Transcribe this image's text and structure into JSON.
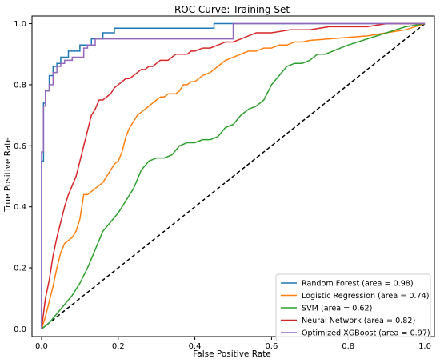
{
  "chart_data": {
    "type": "line",
    "title": "ROC Curve: Training Set",
    "xlabel": "False Positive Rate",
    "ylabel": "True Positive Rate",
    "xlim": [
      -0.025,
      1.025
    ],
    "ylim": [
      -0.025,
      1.025
    ],
    "xticks": [
      0.0,
      0.2,
      0.4,
      0.6,
      0.8,
      1.0
    ],
    "yticks": [
      0.0,
      0.2,
      0.4,
      0.6,
      0.8,
      1.0
    ],
    "xtick_labels": [
      "0.0",
      "0.2",
      "0.4",
      "0.6",
      "0.8",
      "1.0"
    ],
    "ytick_labels": [
      "0.0",
      "0.2",
      "0.4",
      "0.6",
      "0.8",
      "1.0"
    ],
    "grid": false,
    "legend_position": "lower-right",
    "diagonal": {
      "x": [
        0,
        1
      ],
      "y": [
        0,
        1
      ],
      "color": "#000000",
      "dashed": true
    },
    "series": [
      {
        "name": "Random Forest (area = 0.98)",
        "color": "#1f77b4",
        "x": [
          0.0,
          0.0,
          0.005,
          0.005,
          0.01,
          0.01,
          0.02,
          0.02,
          0.03,
          0.03,
          0.04,
          0.04,
          0.05,
          0.05,
          0.07,
          0.07,
          0.1,
          0.1,
          0.13,
          0.13,
          0.16,
          0.16,
          0.19,
          0.19,
          0.45,
          0.45,
          1.0
        ],
        "y": [
          0.0,
          0.55,
          0.55,
          0.74,
          0.74,
          0.78,
          0.78,
          0.83,
          0.83,
          0.86,
          0.86,
          0.87,
          0.87,
          0.89,
          0.89,
          0.91,
          0.91,
          0.93,
          0.93,
          0.95,
          0.95,
          0.97,
          0.97,
          0.985,
          0.985,
          1.0,
          1.0
        ]
      },
      {
        "name": "Logistic Regression (area = 0.74)",
        "color": "#ff7f0e",
        "x": [
          0.0,
          0.01,
          0.02,
          0.03,
          0.04,
          0.05,
          0.06,
          0.07,
          0.08,
          0.09,
          0.1,
          0.11,
          0.12,
          0.13,
          0.14,
          0.15,
          0.16,
          0.17,
          0.18,
          0.19,
          0.2,
          0.21,
          0.22,
          0.23,
          0.24,
          0.25,
          0.26,
          0.27,
          0.28,
          0.29,
          0.3,
          0.31,
          0.32,
          0.33,
          0.34,
          0.35,
          0.36,
          0.37,
          0.38,
          0.39,
          0.4,
          0.42,
          0.44,
          0.46,
          0.48,
          0.5,
          0.52,
          0.54,
          0.56,
          0.58,
          0.6,
          0.62,
          0.64,
          0.66,
          0.68,
          0.7,
          0.75,
          0.8,
          0.85,
          0.9,
          0.95,
          1.0
        ],
        "y": [
          0.0,
          0.04,
          0.09,
          0.14,
          0.2,
          0.25,
          0.28,
          0.29,
          0.3,
          0.32,
          0.36,
          0.44,
          0.44,
          0.45,
          0.46,
          0.47,
          0.48,
          0.5,
          0.52,
          0.54,
          0.55,
          0.58,
          0.63,
          0.66,
          0.68,
          0.7,
          0.71,
          0.72,
          0.73,
          0.74,
          0.75,
          0.76,
          0.76,
          0.77,
          0.77,
          0.77,
          0.78,
          0.8,
          0.8,
          0.81,
          0.81,
          0.83,
          0.84,
          0.86,
          0.88,
          0.89,
          0.9,
          0.91,
          0.91,
          0.92,
          0.92,
          0.93,
          0.93,
          0.94,
          0.94,
          0.945,
          0.95,
          0.955,
          0.96,
          0.97,
          0.98,
          1.0
        ]
      },
      {
        "name": "SVM (area = 0.62)",
        "color": "#2ca02c",
        "x": [
          0.0,
          0.02,
          0.04,
          0.06,
          0.08,
          0.1,
          0.12,
          0.14,
          0.16,
          0.18,
          0.2,
          0.22,
          0.24,
          0.26,
          0.28,
          0.3,
          0.32,
          0.34,
          0.36,
          0.38,
          0.4,
          0.42,
          0.44,
          0.46,
          0.48,
          0.5,
          0.52,
          0.54,
          0.56,
          0.58,
          0.6,
          0.62,
          0.64,
          0.66,
          0.68,
          0.7,
          0.72,
          0.74,
          0.76,
          0.78,
          0.8,
          0.85,
          0.9,
          0.95,
          1.0
        ],
        "y": [
          0.0,
          0.02,
          0.05,
          0.08,
          0.11,
          0.15,
          0.2,
          0.26,
          0.32,
          0.35,
          0.38,
          0.42,
          0.46,
          0.52,
          0.55,
          0.56,
          0.56,
          0.57,
          0.6,
          0.61,
          0.61,
          0.62,
          0.62,
          0.63,
          0.66,
          0.67,
          0.7,
          0.72,
          0.73,
          0.75,
          0.8,
          0.83,
          0.86,
          0.87,
          0.87,
          0.88,
          0.9,
          0.9,
          0.91,
          0.92,
          0.93,
          0.95,
          0.97,
          0.99,
          1.0
        ]
      },
      {
        "name": "Neural Network (area = 0.82)",
        "color": "#d62728",
        "x": [
          0.0,
          0.01,
          0.02,
          0.03,
          0.04,
          0.05,
          0.06,
          0.07,
          0.08,
          0.09,
          0.1,
          0.11,
          0.12,
          0.13,
          0.14,
          0.15,
          0.16,
          0.17,
          0.18,
          0.19,
          0.2,
          0.21,
          0.22,
          0.23,
          0.24,
          0.25,
          0.26,
          0.27,
          0.28,
          0.29,
          0.3,
          0.31,
          0.32,
          0.33,
          0.34,
          0.35,
          0.36,
          0.37,
          0.38,
          0.39,
          0.4,
          0.42,
          0.44,
          0.46,
          0.48,
          0.5,
          0.52,
          0.54,
          0.56,
          0.58,
          0.6,
          0.65,
          0.7,
          0.75,
          0.8,
          0.85,
          0.9,
          0.95,
          1.0
        ],
        "y": [
          0.0,
          0.1,
          0.16,
          0.24,
          0.3,
          0.35,
          0.4,
          0.44,
          0.47,
          0.5,
          0.55,
          0.6,
          0.65,
          0.7,
          0.72,
          0.75,
          0.75,
          0.76,
          0.77,
          0.79,
          0.8,
          0.81,
          0.82,
          0.82,
          0.83,
          0.84,
          0.85,
          0.85,
          0.86,
          0.86,
          0.87,
          0.88,
          0.88,
          0.88,
          0.89,
          0.9,
          0.9,
          0.9,
          0.9,
          0.91,
          0.91,
          0.92,
          0.92,
          0.93,
          0.94,
          0.94,
          0.95,
          0.96,
          0.97,
          0.97,
          0.97,
          0.98,
          0.98,
          0.99,
          0.99,
          0.99,
          1.0,
          1.0,
          1.0
        ]
      },
      {
        "name": "Optimized XGBoost (area = 0.97)",
        "color": "#9467bd",
        "x": [
          0.0,
          0.0,
          0.005,
          0.005,
          0.01,
          0.01,
          0.02,
          0.02,
          0.03,
          0.03,
          0.04,
          0.04,
          0.05,
          0.05,
          0.06,
          0.06,
          0.08,
          0.08,
          0.11,
          0.11,
          0.12,
          0.12,
          0.14,
          0.14,
          0.5,
          0.5,
          1.0
        ],
        "y": [
          0.0,
          0.58,
          0.58,
          0.73,
          0.73,
          0.78,
          0.78,
          0.8,
          0.8,
          0.84,
          0.84,
          0.86,
          0.86,
          0.87,
          0.87,
          0.88,
          0.88,
          0.89,
          0.89,
          0.92,
          0.92,
          0.93,
          0.93,
          0.95,
          0.95,
          1.0,
          1.0
        ]
      }
    ]
  }
}
